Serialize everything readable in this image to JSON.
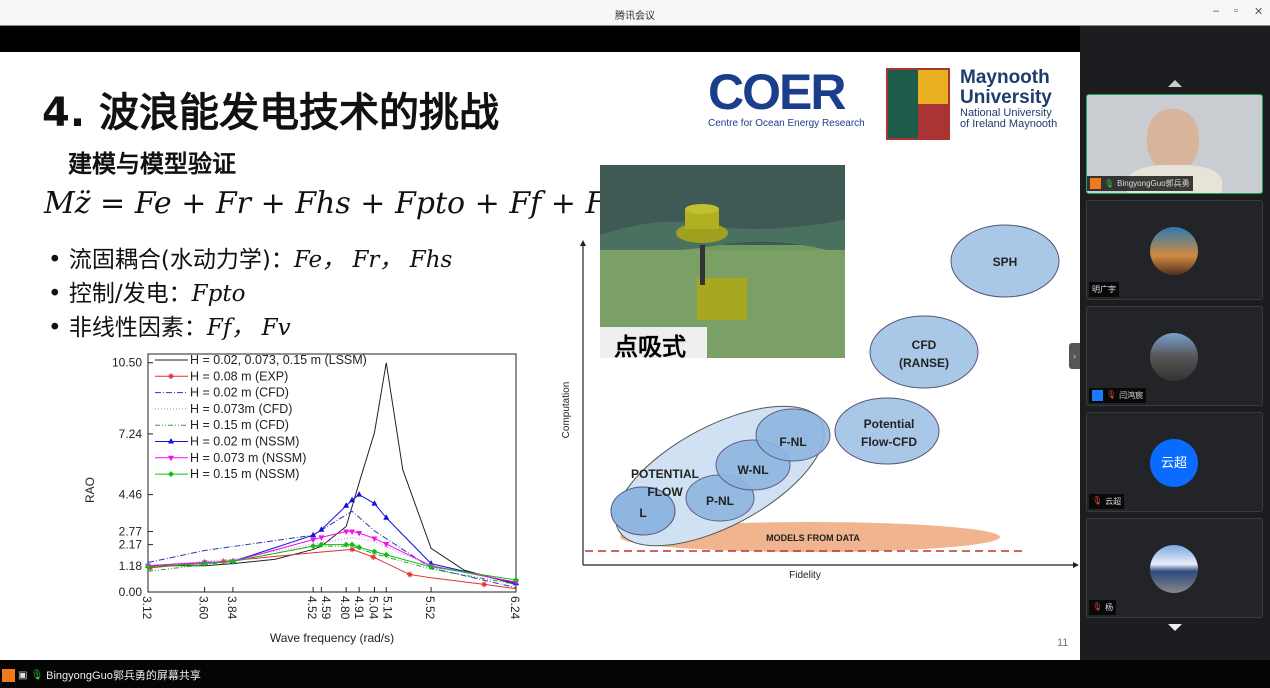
{
  "window": {
    "title": "腾讯会议",
    "controls": [
      "–",
      "▫",
      "✕"
    ]
  },
  "slide": {
    "title": "4. 波浪能发电技术的挑战",
    "subtitle": "建模与模型验证",
    "equation": "Mz̈ = Fe + Fr + Fhs + Fpto + Ff + Fv",
    "bullets": [
      {
        "text": "流固耦合(水动力学)：",
        "math": "Fe， Fr， Fhs"
      },
      {
        "text": "控制/发电：",
        "math": "Fpto"
      },
      {
        "text": "非线性因素：",
        "math": "Ff， Fv"
      }
    ],
    "logo_coer": {
      "name": "COER",
      "caption": "Centre for Ocean Energy Research"
    },
    "logo_maynooth": {
      "line1": "Maynooth",
      "line2": "University",
      "line3": "National University",
      "line4": "of Ireland Maynooth"
    },
    "image_caption": "点吸式",
    "page_number": "11",
    "diagram": {
      "xlabel": "Fidelity",
      "ylabel": "Computation",
      "nodes": [
        "SPH",
        "CFD",
        "(RANSE)",
        "Potential",
        "Flow-CFD",
        "F-NL",
        "W-NL",
        "P-NL",
        "L",
        "POTENTIAL",
        "FLOW",
        "MODELS FROM DATA"
      ]
    }
  },
  "chart_data": {
    "type": "line",
    "xlabel": "Wave frequency (rad/s)",
    "ylabel": "RAO",
    "xlim": [
      3.12,
      6.24
    ],
    "ylim": [
      0,
      10.9
    ],
    "xticks": [
      "3.12",
      "3.60",
      "3.84",
      "4.52",
      "4.59",
      "4.80",
      "4.91",
      "5.04",
      "5.14",
      "5.52",
      "6.24"
    ],
    "yticks": [
      "0.00",
      "1.18",
      "2.17",
      "2.77",
      "4.46",
      "7.24",
      "10.50"
    ],
    "legend": "top-left",
    "series": [
      {
        "name": "H = 0.02, 0.073, 0.15 m (LSSM)",
        "color": "#222222",
        "dash": "",
        "marker": "none",
        "x": [
          3.12,
          3.6,
          3.84,
          4.2,
          4.52,
          4.59,
          4.8,
          4.91,
          5.04,
          5.14,
          5.28,
          5.52,
          5.8,
          6.24
        ],
        "y": [
          1.2,
          1.2,
          1.3,
          1.5,
          1.95,
          2.1,
          3.0,
          5.0,
          7.3,
          10.5,
          5.6,
          2.0,
          1.0,
          0.35
        ]
      },
      {
        "name": "H = 0.08 m (EXP)",
        "color": "#e03030",
        "dash": "",
        "marker": "star",
        "x": [
          3.12,
          3.76,
          4.52,
          4.85,
          5.03,
          5.34,
          5.52,
          5.97,
          6.24
        ],
        "y": [
          1.1,
          1.4,
          1.8,
          1.95,
          1.6,
          0.8,
          0.65,
          0.35,
          0.15
        ],
        "mx": [
          3.14,
          3.76,
          4.85,
          5.03,
          5.34,
          5.97
        ]
      },
      {
        "name": "H = 0.02 m (CFD)",
        "color": "#3030c0",
        "dash": "6,2,1,2",
        "marker": "none",
        "x": [
          3.12,
          3.6,
          4.52,
          4.85,
          5.04,
          5.52,
          6.24
        ],
        "y": [
          1.35,
          1.9,
          2.6,
          3.7,
          2.8,
          1.1,
          0.2
        ]
      },
      {
        "name": "H = 0.073m (CFD)",
        "color": "#e070e0",
        "dash": "1,2",
        "marker": "none",
        "x": [
          3.12,
          3.84,
          4.52,
          4.85,
          5.04,
          5.52,
          6.24
        ],
        "y": [
          1.2,
          1.5,
          2.2,
          2.5,
          2.3,
          1.2,
          0.4
        ]
      },
      {
        "name": "H = 0.15 m (CFD)",
        "color": "#30a030",
        "dash": "5,2,1,2,1,2",
        "marker": "none",
        "x": [
          3.12,
          3.84,
          4.52,
          4.85,
          5.04,
          5.52,
          6.24
        ],
        "y": [
          0.95,
          1.4,
          2.1,
          2.1,
          1.75,
          1.05,
          0.35
        ]
      },
      {
        "name": "H = 0.02 m (NSSM)",
        "color": "#1010e0",
        "dash": "",
        "marker": "triangle",
        "x": [
          3.12,
          3.6,
          3.84,
          4.52,
          4.59,
          4.8,
          4.85,
          4.91,
          5.04,
          5.14,
          5.52,
          6.24
        ],
        "y": [
          1.2,
          1.35,
          1.4,
          2.6,
          2.85,
          3.95,
          4.2,
          4.46,
          4.05,
          3.4,
          1.3,
          0.4
        ]
      },
      {
        "name": "H = 0.073 m (NSSM)",
        "color": "#ee10ee",
        "dash": "",
        "marker": "triangle-down",
        "x": [
          3.12,
          3.6,
          3.84,
          4.52,
          4.59,
          4.8,
          4.85,
          4.91,
          5.04,
          5.14,
          5.52,
          6.24
        ],
        "y": [
          1.2,
          1.35,
          1.4,
          2.4,
          2.5,
          2.77,
          2.77,
          2.7,
          2.45,
          2.2,
          1.2,
          0.45
        ]
      },
      {
        "name": "H = 0.15 m (NSSM)",
        "color": "#10c010",
        "dash": "",
        "marker": "diamond",
        "x": [
          3.12,
          3.6,
          3.84,
          4.52,
          4.59,
          4.8,
          4.85,
          4.91,
          5.04,
          5.14,
          5.52,
          6.24
        ],
        "y": [
          1.15,
          1.3,
          1.4,
          2.1,
          2.17,
          2.17,
          2.17,
          2.05,
          1.85,
          1.7,
          1.15,
          0.55
        ]
      }
    ]
  },
  "participants": [
    {
      "name": "BingyongGuo郭兵勇",
      "muted": false,
      "video": true
    },
    {
      "name": "明广宇",
      "muted": false
    },
    {
      "name": "闫鸿宸",
      "muted": true
    },
    {
      "name": "云超",
      "muted": true,
      "avatar_text": "云超",
      "avatar_color": "#0a6cff"
    },
    {
      "name": "杨",
      "muted": true
    }
  ],
  "status": {
    "share_text": "BingyongGuo郭兵勇的屏幕共享"
  }
}
